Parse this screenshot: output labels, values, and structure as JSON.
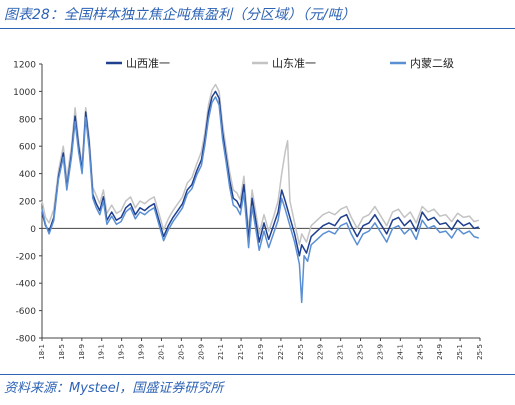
{
  "title": "图表28：全国样本独立焦企吨焦盈利（分区域）（元/吨）",
  "source": "资料来源：Mysteel，国盛证券研究所",
  "chart_data": {
    "type": "line",
    "ylim": [
      -800,
      1200
    ],
    "yticks": [
      -800,
      -600,
      -400,
      -200,
      0,
      200,
      400,
      600,
      800,
      1000,
      1200
    ],
    "xlim": [
      2018.0,
      2025.42
    ],
    "xticks": [
      "18-1",
      "18-5",
      "18-9",
      "19-1",
      "19-5",
      "19-9",
      "20-1",
      "20-5",
      "20-9",
      "21-1",
      "21-5",
      "21-9",
      "22-1",
      "22-5",
      "22-9",
      "23-1",
      "23-5",
      "23-9",
      "24-1",
      "24-5",
      "24-9",
      "25-1",
      "25-5"
    ],
    "legend_position": "top",
    "series": [
      {
        "name": "山西准一",
        "color": "#1f3f8f",
        "points": [
          [
            2018.0,
            120
          ],
          [
            2018.06,
            20
          ],
          [
            2018.12,
            -20
          ],
          [
            2018.2,
            80
          ],
          [
            2018.28,
            380
          ],
          [
            2018.36,
            550
          ],
          [
            2018.42,
            300
          ],
          [
            2018.5,
            550
          ],
          [
            2018.56,
            820
          ],
          [
            2018.62,
            600
          ],
          [
            2018.68,
            420
          ],
          [
            2018.74,
            850
          ],
          [
            2018.8,
            620
          ],
          [
            2018.86,
            250
          ],
          [
            2018.92,
            180
          ],
          [
            2018.98,
            130
          ],
          [
            2019.04,
            230
          ],
          [
            2019.1,
            60
          ],
          [
            2019.18,
            120
          ],
          [
            2019.26,
            60
          ],
          [
            2019.34,
            80
          ],
          [
            2019.42,
            150
          ],
          [
            2019.5,
            180
          ],
          [
            2019.58,
            100
          ],
          [
            2019.66,
            150
          ],
          [
            2019.74,
            130
          ],
          [
            2019.82,
            160
          ],
          [
            2019.9,
            180
          ],
          [
            2019.98,
            60
          ],
          [
            2020.06,
            -60
          ],
          [
            2020.14,
            20
          ],
          [
            2020.22,
            80
          ],
          [
            2020.3,
            130
          ],
          [
            2020.38,
            180
          ],
          [
            2020.46,
            280
          ],
          [
            2020.54,
            320
          ],
          [
            2020.62,
            420
          ],
          [
            2020.7,
            500
          ],
          [
            2020.76,
            650
          ],
          [
            2020.82,
            850
          ],
          [
            2020.88,
            960
          ],
          [
            2020.94,
            1000
          ],
          [
            2021.0,
            950
          ],
          [
            2021.06,
            700
          ],
          [
            2021.12,
            520
          ],
          [
            2021.18,
            350
          ],
          [
            2021.24,
            220
          ],
          [
            2021.3,
            200
          ],
          [
            2021.36,
            150
          ],
          [
            2021.42,
            320
          ],
          [
            2021.5,
            -80
          ],
          [
            2021.56,
            220
          ],
          [
            2021.62,
            60
          ],
          [
            2021.68,
            -100
          ],
          [
            2021.76,
            40
          ],
          [
            2021.84,
            -80
          ],
          [
            2021.92,
            20
          ],
          [
            2022.0,
            120
          ],
          [
            2022.06,
            280
          ],
          [
            2022.12,
            200
          ],
          [
            2022.2,
            80
          ],
          [
            2022.28,
            -40
          ],
          [
            2022.36,
            -200
          ],
          [
            2022.4,
            -120
          ],
          [
            2022.48,
            -180
          ],
          [
            2022.56,
            -60
          ],
          [
            2022.66,
            -20
          ],
          [
            2022.76,
            20
          ],
          [
            2022.86,
            40
          ],
          [
            2022.96,
            20
          ],
          [
            2023.06,
            80
          ],
          [
            2023.16,
            100
          ],
          [
            2023.24,
            20
          ],
          [
            2023.34,
            -60
          ],
          [
            2023.44,
            20
          ],
          [
            2023.54,
            40
          ],
          [
            2023.64,
            100
          ],
          [
            2023.74,
            30
          ],
          [
            2023.84,
            -40
          ],
          [
            2023.94,
            60
          ],
          [
            2024.04,
            80
          ],
          [
            2024.14,
            20
          ],
          [
            2024.24,
            60
          ],
          [
            2024.34,
            -20
          ],
          [
            2024.44,
            120
          ],
          [
            2024.54,
            60
          ],
          [
            2024.64,
            80
          ],
          [
            2024.74,
            30
          ],
          [
            2024.84,
            40
          ],
          [
            2024.94,
            -10
          ],
          [
            2025.04,
            60
          ],
          [
            2025.14,
            20
          ],
          [
            2025.24,
            40
          ],
          [
            2025.32,
            0
          ],
          [
            2025.4,
            10
          ]
        ]
      },
      {
        "name": "山东准一",
        "color": "#c3c3c3",
        "points": [
          [
            2018.0,
            200
          ],
          [
            2018.06,
            80
          ],
          [
            2018.12,
            40
          ],
          [
            2018.2,
            140
          ],
          [
            2018.28,
            420
          ],
          [
            2018.36,
            600
          ],
          [
            2018.42,
            360
          ],
          [
            2018.5,
            600
          ],
          [
            2018.56,
            880
          ],
          [
            2018.62,
            640
          ],
          [
            2018.68,
            460
          ],
          [
            2018.74,
            880
          ],
          [
            2018.8,
            660
          ],
          [
            2018.86,
            300
          ],
          [
            2018.92,
            240
          ],
          [
            2018.98,
            180
          ],
          [
            2019.04,
            280
          ],
          [
            2019.1,
            110
          ],
          [
            2019.18,
            170
          ],
          [
            2019.26,
            110
          ],
          [
            2019.34,
            130
          ],
          [
            2019.42,
            200
          ],
          [
            2019.5,
            230
          ],
          [
            2019.58,
            150
          ],
          [
            2019.66,
            200
          ],
          [
            2019.74,
            180
          ],
          [
            2019.82,
            210
          ],
          [
            2019.9,
            230
          ],
          [
            2019.98,
            110
          ],
          [
            2020.06,
            -10
          ],
          [
            2020.14,
            70
          ],
          [
            2020.22,
            130
          ],
          [
            2020.3,
            180
          ],
          [
            2020.38,
            230
          ],
          [
            2020.46,
            330
          ],
          [
            2020.54,
            370
          ],
          [
            2020.62,
            470
          ],
          [
            2020.7,
            560
          ],
          [
            2020.76,
            700
          ],
          [
            2020.82,
            900
          ],
          [
            2020.88,
            1010
          ],
          [
            2020.94,
            1050
          ],
          [
            2021.0,
            1000
          ],
          [
            2021.06,
            760
          ],
          [
            2021.12,
            580
          ],
          [
            2021.18,
            410
          ],
          [
            2021.24,
            280
          ],
          [
            2021.3,
            260
          ],
          [
            2021.36,
            210
          ],
          [
            2021.42,
            380
          ],
          [
            2021.5,
            -20
          ],
          [
            2021.56,
            280
          ],
          [
            2021.62,
            120
          ],
          [
            2021.68,
            -40
          ],
          [
            2021.76,
            100
          ],
          [
            2021.84,
            -20
          ],
          [
            2021.92,
            80
          ],
          [
            2022.0,
            200
          ],
          [
            2022.06,
            400
          ],
          [
            2022.12,
            560
          ],
          [
            2022.16,
            640
          ],
          [
            2022.2,
            200
          ],
          [
            2022.28,
            40
          ],
          [
            2022.36,
            -120
          ],
          [
            2022.4,
            -40
          ],
          [
            2022.48,
            -100
          ],
          [
            2022.56,
            20
          ],
          [
            2022.66,
            60
          ],
          [
            2022.76,
            100
          ],
          [
            2022.86,
            120
          ],
          [
            2022.96,
            100
          ],
          [
            2023.06,
            140
          ],
          [
            2023.16,
            160
          ],
          [
            2023.24,
            80
          ],
          [
            2023.34,
            0
          ],
          [
            2023.44,
            80
          ],
          [
            2023.54,
            100
          ],
          [
            2023.64,
            160
          ],
          [
            2023.74,
            90
          ],
          [
            2023.84,
            20
          ],
          [
            2023.94,
            120
          ],
          [
            2024.04,
            140
          ],
          [
            2024.14,
            80
          ],
          [
            2024.24,
            120
          ],
          [
            2024.34,
            40
          ],
          [
            2024.44,
            160
          ],
          [
            2024.54,
            120
          ],
          [
            2024.64,
            140
          ],
          [
            2024.74,
            90
          ],
          [
            2024.84,
            100
          ],
          [
            2024.94,
            50
          ],
          [
            2025.04,
            110
          ],
          [
            2025.14,
            80
          ],
          [
            2025.24,
            90
          ],
          [
            2025.32,
            50
          ],
          [
            2025.4,
            60
          ]
        ]
      },
      {
        "name": "内蒙二级",
        "color": "#5b8fd4",
        "points": [
          [
            2018.0,
            140
          ],
          [
            2018.06,
            30
          ],
          [
            2018.12,
            -40
          ],
          [
            2018.2,
            60
          ],
          [
            2018.28,
            360
          ],
          [
            2018.36,
            520
          ],
          [
            2018.42,
            280
          ],
          [
            2018.5,
            520
          ],
          [
            2018.56,
            780
          ],
          [
            2018.62,
            560
          ],
          [
            2018.68,
            400
          ],
          [
            2018.74,
            810
          ],
          [
            2018.8,
            580
          ],
          [
            2018.86,
            220
          ],
          [
            2018.92,
            150
          ],
          [
            2018.98,
            100
          ],
          [
            2019.04,
            200
          ],
          [
            2019.1,
            30
          ],
          [
            2019.18,
            90
          ],
          [
            2019.26,
            30
          ],
          [
            2019.34,
            50
          ],
          [
            2019.42,
            120
          ],
          [
            2019.5,
            150
          ],
          [
            2019.58,
            70
          ],
          [
            2019.66,
            120
          ],
          [
            2019.74,
            100
          ],
          [
            2019.82,
            130
          ],
          [
            2019.9,
            150
          ],
          [
            2019.98,
            30
          ],
          [
            2020.06,
            -90
          ],
          [
            2020.14,
            -10
          ],
          [
            2020.22,
            50
          ],
          [
            2020.3,
            100
          ],
          [
            2020.38,
            150
          ],
          [
            2020.46,
            250
          ],
          [
            2020.54,
            290
          ],
          [
            2020.62,
            390
          ],
          [
            2020.7,
            460
          ],
          [
            2020.76,
            610
          ],
          [
            2020.82,
            800
          ],
          [
            2020.88,
            920
          ],
          [
            2020.94,
            960
          ],
          [
            2021.0,
            900
          ],
          [
            2021.06,
            650
          ],
          [
            2021.12,
            480
          ],
          [
            2021.18,
            300
          ],
          [
            2021.24,
            170
          ],
          [
            2021.3,
            150
          ],
          [
            2021.36,
            100
          ],
          [
            2021.42,
            260
          ],
          [
            2021.5,
            -140
          ],
          [
            2021.56,
            160
          ],
          [
            2021.62,
            0
          ],
          [
            2021.68,
            -160
          ],
          [
            2021.76,
            -20
          ],
          [
            2021.84,
            -140
          ],
          [
            2021.92,
            -40
          ],
          [
            2022.0,
            60
          ],
          [
            2022.06,
            220
          ],
          [
            2022.12,
            140
          ],
          [
            2022.2,
            20
          ],
          [
            2022.28,
            -100
          ],
          [
            2022.36,
            -260
          ],
          [
            2022.4,
            -540
          ],
          [
            2022.44,
            -200
          ],
          [
            2022.5,
            -240
          ],
          [
            2022.56,
            -120
          ],
          [
            2022.66,
            -80
          ],
          [
            2022.76,
            -40
          ],
          [
            2022.86,
            -20
          ],
          [
            2022.96,
            -40
          ],
          [
            2023.06,
            20
          ],
          [
            2023.16,
            40
          ],
          [
            2023.24,
            -40
          ],
          [
            2023.34,
            -120
          ],
          [
            2023.44,
            -40
          ],
          [
            2023.54,
            -20
          ],
          [
            2023.64,
            40
          ],
          [
            2023.74,
            -30
          ],
          [
            2023.84,
            -100
          ],
          [
            2023.94,
            0
          ],
          [
            2024.04,
            20
          ],
          [
            2024.14,
            -40
          ],
          [
            2024.24,
            0
          ],
          [
            2024.34,
            -80
          ],
          [
            2024.44,
            60
          ],
          [
            2024.54,
            0
          ],
          [
            2024.64,
            20
          ],
          [
            2024.74,
            -30
          ],
          [
            2024.84,
            -20
          ],
          [
            2024.94,
            -70
          ],
          [
            2025.04,
            0
          ],
          [
            2025.14,
            -40
          ],
          [
            2025.24,
            -20
          ],
          [
            2025.32,
            -60
          ],
          [
            2025.4,
            -70
          ]
        ]
      }
    ]
  }
}
